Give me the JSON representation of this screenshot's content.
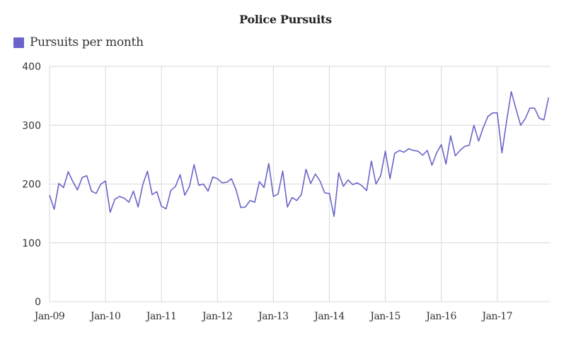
{
  "chart_data": {
    "type": "line",
    "title": "Police Pursuits",
    "xlabel": "",
    "ylabel": "",
    "ylim": [
      0,
      400
    ],
    "y_ticks": [
      0,
      100,
      200,
      300,
      400
    ],
    "x_tick_labels": [
      "Jan-09",
      "Jan-10",
      "Jan-11",
      "Jan-12",
      "Jan-13",
      "Jan-14",
      "Jan-15",
      "Jan-16",
      "Jan-17"
    ],
    "x_start": "Jan-09",
    "x_end": "Dec-17",
    "grid": true,
    "legend_position": "top-left",
    "series": [
      {
        "name": "Pursuits per month",
        "color": "#6a64c8",
        "values": [
          181,
          157,
          201,
          194,
          221,
          204,
          190,
          211,
          214,
          188,
          184,
          200,
          205,
          152,
          174,
          179,
          176,
          169,
          188,
          161,
          199,
          222,
          182,
          187,
          162,
          158,
          189,
          196,
          216,
          181,
          196,
          233,
          198,
          200,
          188,
          212,
          209,
          202,
          203,
          209,
          190,
          160,
          161,
          172,
          169,
          204,
          194,
          235,
          179,
          183,
          222,
          161,
          177,
          172,
          182,
          225,
          201,
          217,
          205,
          185,
          184,
          145,
          219,
          196,
          207,
          199,
          202,
          197,
          189,
          239,
          200,
          214,
          256,
          209,
          252,
          257,
          254,
          260,
          257,
          256,
          249,
          257,
          232,
          253,
          267,
          234,
          282,
          248,
          257,
          264,
          266,
          300,
          273,
          296,
          315,
          321,
          321,
          253,
          307,
          357,
          328,
          300,
          311,
          329,
          329,
          312,
          309,
          347
        ]
      }
    ]
  }
}
